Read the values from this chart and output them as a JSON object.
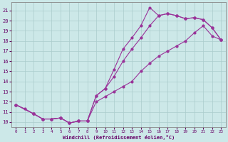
{
  "xlabel": "Windchill (Refroidissement éolien,°C)",
  "bg_color": "#cce8e8",
  "grid_color": "#aacccc",
  "line_color": "#993399",
  "xlim": [
    -0.5,
    23.5
  ],
  "ylim": [
    9.5,
    21.8
  ],
  "xticks": [
    0,
    1,
    2,
    3,
    4,
    5,
    6,
    7,
    8,
    9,
    10,
    11,
    12,
    13,
    14,
    15,
    16,
    17,
    18,
    19,
    20,
    21,
    22,
    23
  ],
  "yticks": [
    10,
    11,
    12,
    13,
    14,
    15,
    16,
    17,
    18,
    19,
    20,
    21
  ],
  "curve1_x": [
    0,
    1,
    2,
    3,
    4,
    5,
    6,
    7,
    8,
    9,
    10,
    11,
    12,
    13,
    14,
    15,
    16,
    17,
    18,
    19,
    20,
    21,
    22,
    23
  ],
  "curve1_y": [
    11.7,
    11.3,
    10.8,
    10.3,
    10.3,
    10.4,
    9.9,
    10.1,
    10.1,
    12.6,
    13.3,
    15.2,
    17.2,
    18.3,
    19.5,
    21.3,
    20.5,
    20.7,
    20.5,
    20.2,
    20.3,
    20.1,
    19.3,
    18.1
  ],
  "curve2_x": [
    0,
    2,
    3,
    4,
    5,
    6,
    7,
    8,
    9,
    10,
    11,
    12,
    13,
    14,
    15,
    16,
    17,
    18,
    19,
    20,
    21,
    22,
    23
  ],
  "curve2_y": [
    11.7,
    10.8,
    10.3,
    10.3,
    10.4,
    9.9,
    10.1,
    10.1,
    12.0,
    12.5,
    13.0,
    13.5,
    14.0,
    15.0,
    15.8,
    16.5,
    17.0,
    17.5,
    18.0,
    18.8,
    19.5,
    18.5,
    18.1
  ],
  "curve3_x": [
    0,
    2,
    3,
    4,
    5,
    6,
    7,
    8,
    9,
    10,
    11,
    12,
    13,
    14,
    15,
    16,
    17,
    18,
    19,
    20,
    21,
    22,
    23
  ],
  "curve3_y": [
    11.7,
    10.8,
    10.3,
    10.3,
    10.4,
    9.9,
    10.1,
    10.1,
    12.6,
    13.3,
    14.5,
    16.0,
    17.2,
    18.3,
    19.5,
    20.5,
    20.7,
    20.5,
    20.2,
    20.3,
    20.1,
    19.3,
    18.1
  ]
}
